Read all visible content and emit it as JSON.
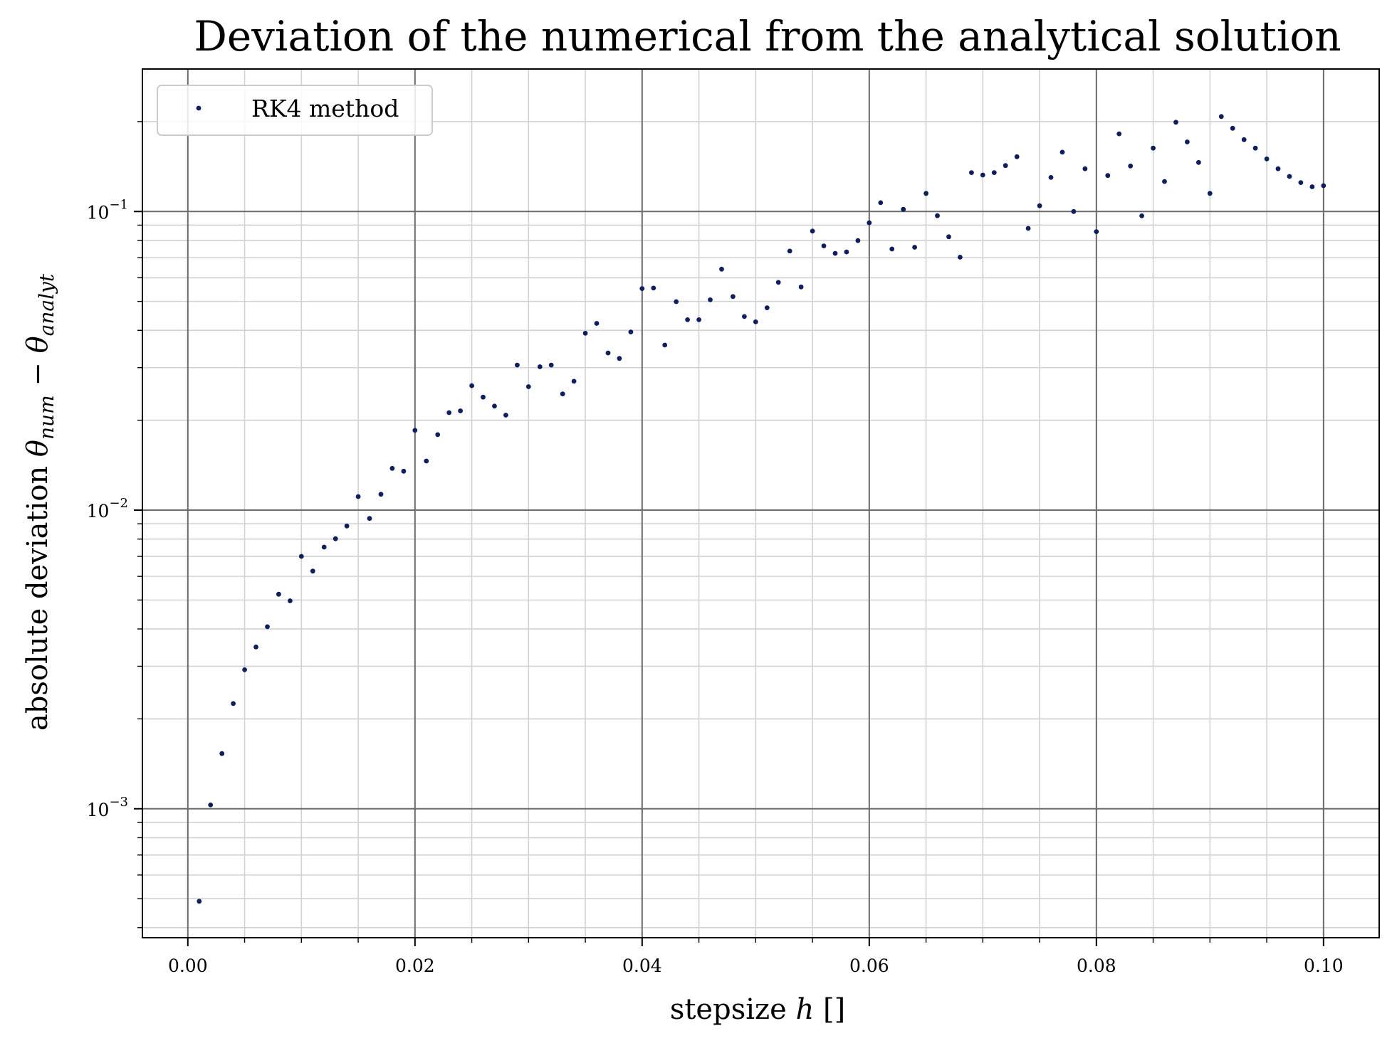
{
  "colors": {
    "marker": "#0d1f5c",
    "major_grid": "#6b6b6b",
    "minor_grid": "#d2d2d2",
    "axes": "#000000",
    "background": "#ffffff"
  },
  "chart_data": {
    "type": "scatter",
    "title": "Deviation of the numerical from the analytical solution",
    "xlabel": "stepsize h []",
    "xlabel_parts": {
      "before": "stepsize ",
      "italic": "h",
      "after": " []"
    },
    "ylabel": "absolute deviation θ_num − θ_analyt",
    "ylabel_parts": {
      "before": "absolute deviation ",
      "theta": "θ",
      "sub1": "num",
      "minus": " − ",
      "sub2": "analyt"
    },
    "xlim": [
      -0.004,
      0.1049
    ],
    "ylim": [
      0.00037,
      0.3
    ],
    "yscale": "log",
    "grid": "major and minor",
    "legend_position": "top-left",
    "x_ticks": [
      {
        "value": 0.0,
        "label": "0.00"
      },
      {
        "value": 0.02,
        "label": "0.02"
      },
      {
        "value": 0.04,
        "label": "0.04"
      },
      {
        "value": 0.06,
        "label": "0.06"
      },
      {
        "value": 0.08,
        "label": "0.08"
      },
      {
        "value": 0.1,
        "label": "0.10"
      }
    ],
    "y_ticks": [
      {
        "value": 0.001,
        "base": "10",
        "exp": "−3"
      },
      {
        "value": 0.01,
        "base": "10",
        "exp": "−2"
      },
      {
        "value": 0.1,
        "base": "10",
        "exp": "−1"
      }
    ],
    "series": [
      {
        "name": "RK4 method",
        "x": [
          0.001,
          0.002,
          0.003,
          0.004,
          0.005,
          0.006,
          0.007,
          0.008,
          0.009,
          0.01,
          0.011,
          0.012,
          0.013,
          0.014,
          0.015,
          0.016,
          0.017,
          0.018,
          0.019,
          0.02,
          0.021,
          0.022,
          0.023,
          0.024,
          0.025,
          0.026,
          0.027,
          0.028,
          0.029,
          0.03,
          0.031,
          0.032,
          0.033,
          0.034,
          0.035,
          0.036,
          0.037,
          0.038,
          0.039,
          0.04,
          0.041,
          0.042,
          0.043,
          0.044,
          0.045,
          0.046,
          0.047,
          0.048,
          0.049,
          0.05,
          0.051,
          0.052,
          0.053,
          0.054,
          0.055,
          0.056,
          0.057,
          0.058,
          0.059,
          0.06,
          0.061,
          0.062,
          0.063,
          0.064,
          0.065,
          0.066,
          0.067,
          0.068,
          0.069,
          0.07,
          0.071,
          0.072,
          0.073,
          0.074,
          0.075,
          0.076,
          0.077,
          0.078,
          0.079,
          0.08,
          0.081,
          0.082,
          0.083,
          0.084,
          0.085,
          0.086,
          0.087,
          0.088,
          0.089,
          0.09,
          0.091,
          0.092,
          0.093,
          0.094,
          0.095,
          0.096,
          0.097,
          0.098,
          0.099,
          0.1
        ],
        "y": [
          0.00049,
          0.00103,
          0.00153,
          0.00225,
          0.00292,
          0.00348,
          0.00407,
          0.00523,
          0.00497,
          0.007,
          0.00625,
          0.00752,
          0.00802,
          0.00885,
          0.0111,
          0.00938,
          0.0113,
          0.0138,
          0.0135,
          0.0185,
          0.0146,
          0.0179,
          0.0212,
          0.0215,
          0.0261,
          0.0239,
          0.0223,
          0.0208,
          0.0306,
          0.0259,
          0.0302,
          0.0306,
          0.0245,
          0.027,
          0.0391,
          0.0422,
          0.0336,
          0.0322,
          0.0395,
          0.0552,
          0.0554,
          0.0357,
          0.0499,
          0.0434,
          0.0434,
          0.0506,
          0.0641,
          0.0519,
          0.0445,
          0.0427,
          0.0476,
          0.0579,
          0.0737,
          0.0559,
          0.086,
          0.0767,
          0.0724,
          0.0732,
          0.0799,
          0.0917,
          0.107,
          0.0749,
          0.1017,
          0.0759,
          0.115,
          0.0968,
          0.0823,
          0.0703,
          0.135,
          0.1325,
          0.135,
          0.1425,
          0.1525,
          0.0878,
          0.1045,
          0.13,
          0.158,
          0.1,
          0.139,
          0.0856,
          0.132,
          0.182,
          0.142,
          0.0967,
          0.163,
          0.126,
          0.199,
          0.171,
          0.146,
          0.115,
          0.208,
          0.19,
          0.174,
          0.163,
          0.15,
          0.139,
          0.131,
          0.125,
          0.121,
          0.122
        ]
      }
    ]
  }
}
